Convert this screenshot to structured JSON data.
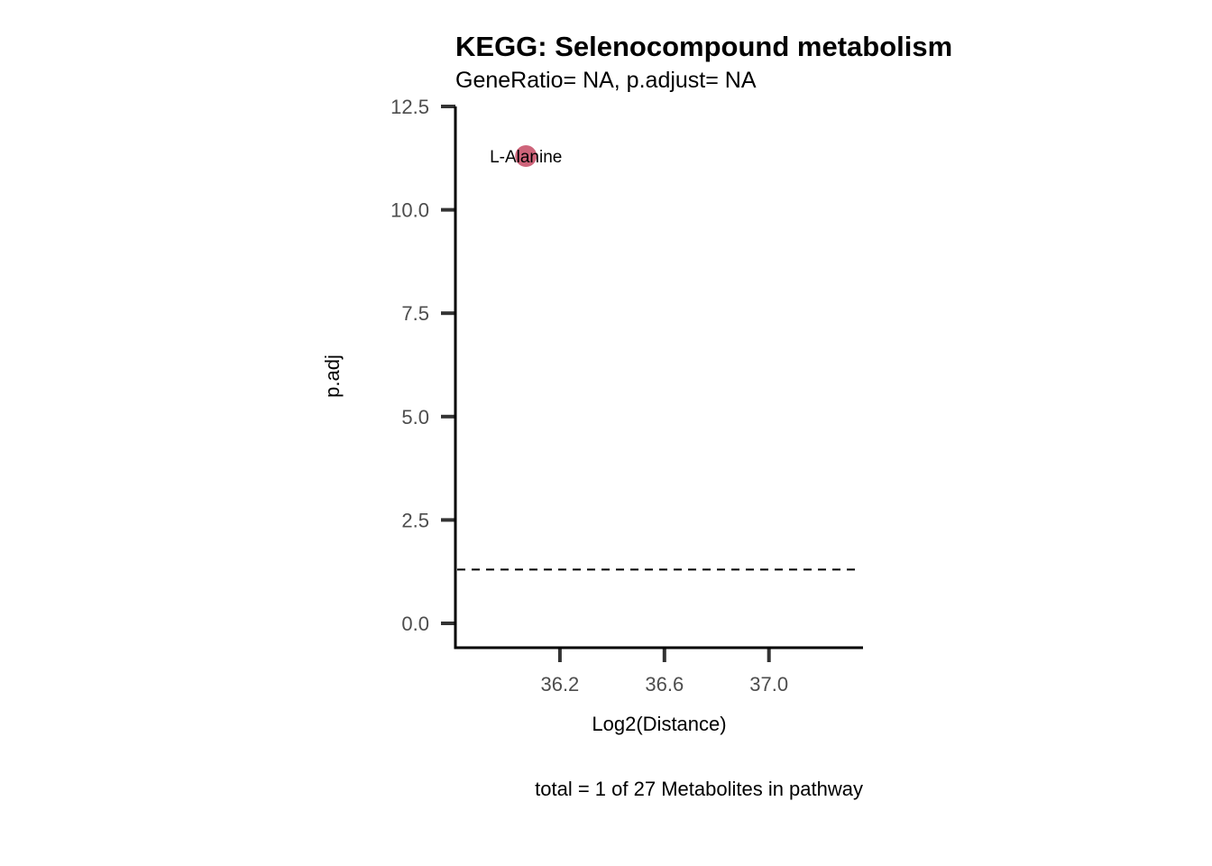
{
  "chart_data": {
    "type": "scatter",
    "title": "KEGG: Selenocompound metabolism",
    "subtitle": "GeneRatio= NA, p.adjust= NA",
    "xlabel": "Log2(Distance)",
    "ylabel": "p.adj",
    "caption": "total = 1 of 27 Metabolites in pathway",
    "xlim": [
      35.8,
      37.36
    ],
    "ylim": [
      -0.6,
      12.5
    ],
    "x_ticks": [
      36.2,
      36.6,
      37.0
    ],
    "x_tick_labels": [
      "36.2",
      "36.6",
      "37.0"
    ],
    "y_ticks": [
      0,
      2.5,
      5,
      7.5,
      10,
      12.5
    ],
    "y_tick_labels": [
      "0.0",
      "2.5",
      "5.0",
      "7.5",
      "10.0",
      "12.5"
    ],
    "threshold_line": 1.3,
    "grid": false,
    "points": [
      {
        "label": "L-Alanine",
        "x": 36.07,
        "y": 11.3
      }
    ],
    "point_color": "#c9536b",
    "axis_color": "#000000",
    "tick_color": "#333333"
  }
}
